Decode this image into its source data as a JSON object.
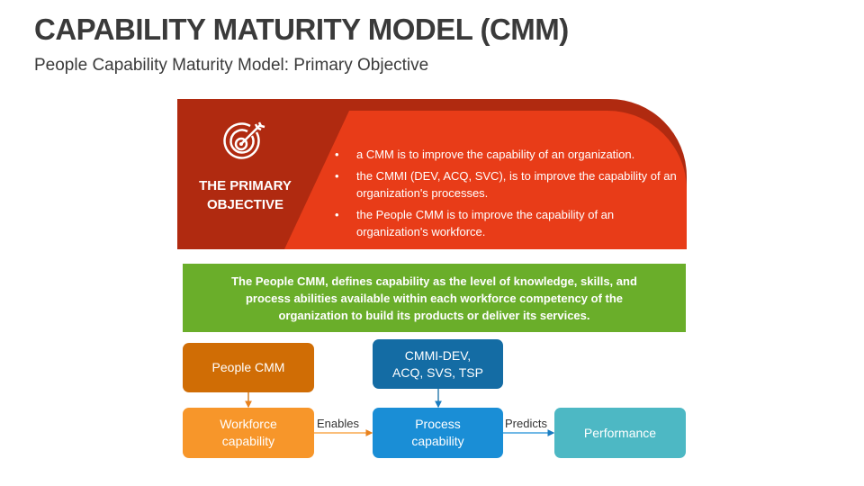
{
  "title": "CAPABILITY MATURITY MODEL (CMM)",
  "subtitle": "People Capability Maturity Model: Primary Objective",
  "objective": {
    "label_line1": "THE PRIMARY",
    "label_line2": "OBJECTIVE",
    "icon": "target-arrow-icon",
    "bullets": [
      "a CMM is to improve the capability of an organization.",
      "the CMMI (DEV, ACQ, SVC), is to improve the capability of an organization's processes.",
      "the People CMM is to improve the capability of an organization's workforce."
    ],
    "colors": {
      "dark": "#B02A10",
      "bright": "#E83C18"
    }
  },
  "definition": "The People CMM, defines capability as the level of knowledge, skills, and process abilities available within each workforce competency of the organization to build its products or deliver its services.",
  "flow": {
    "people_cmm": "People CMM",
    "workforce_line1": "Workforce",
    "workforce_line2": "capability",
    "cmmi_line1": "CMMI-DEV,",
    "cmmi_line2": "ACQ, SVS, TSP",
    "process_line1": "Process",
    "process_line2": "capability",
    "performance": "Performance",
    "enables": "Enables",
    "predicts": "Predicts"
  }
}
